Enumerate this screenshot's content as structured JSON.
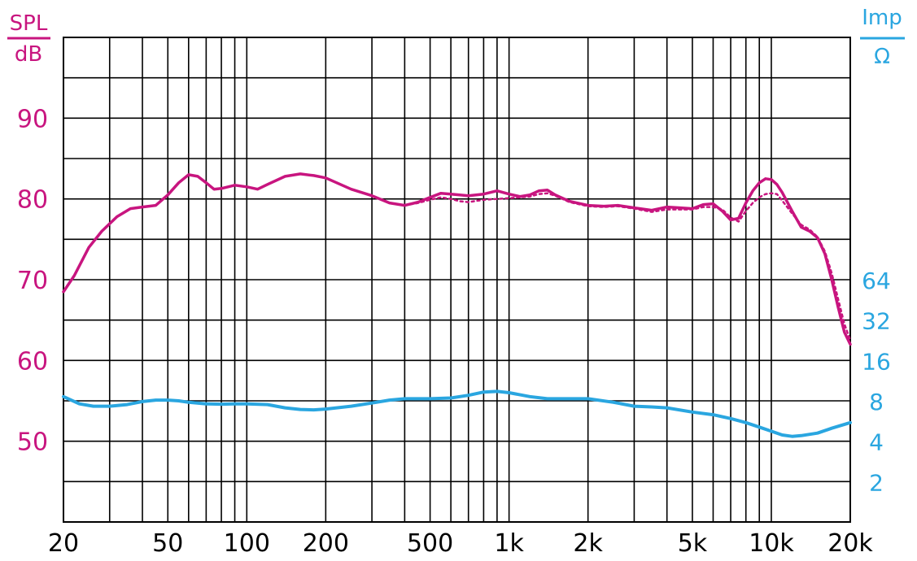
{
  "colors": {
    "spl": "#c8157f",
    "impedance": "#2aa6e0",
    "grid": "#000000",
    "background": "#ffffff"
  },
  "chart_data": {
    "type": "line",
    "title": "",
    "left_axis": {
      "label_top": "SPL",
      "label_bottom": "dB",
      "ylim": [
        40,
        100
      ],
      "ticks": [
        {
          "value": 90,
          "label": "90"
        },
        {
          "value": 80,
          "label": "80"
        },
        {
          "value": 70,
          "label": "70"
        },
        {
          "value": 60,
          "label": "60"
        },
        {
          "value": 50,
          "label": "50"
        }
      ]
    },
    "right_axis": {
      "label_top": "Imp",
      "label_bottom": "Ω",
      "scale": "log2",
      "ticks": [
        {
          "value": 64,
          "label": "64"
        },
        {
          "value": 32,
          "label": "32"
        },
        {
          "value": 16,
          "label": "16"
        },
        {
          "value": 8,
          "label": "8"
        },
        {
          "value": 4,
          "label": "4"
        },
        {
          "value": 2,
          "label": "2"
        }
      ]
    },
    "x_axis": {
      "scale": "log",
      "xlim": [
        20,
        20000
      ],
      "ticks": [
        {
          "value": 20,
          "label": "20"
        },
        {
          "value": 50,
          "label": "50"
        },
        {
          "value": 100,
          "label": "100"
        },
        {
          "value": 200,
          "label": "200"
        },
        {
          "value": 500,
          "label": "500"
        },
        {
          "value": 1000,
          "label": "1k"
        },
        {
          "value": 2000,
          "label": "2k"
        },
        {
          "value": 5000,
          "label": "5k"
        },
        {
          "value": 10000,
          "label": "10k"
        },
        {
          "value": 20000,
          "label": "20k"
        }
      ]
    },
    "grid": true,
    "series": [
      {
        "axis": "left",
        "style": "solid",
        "color": "#c8157f",
        "x": [
          20,
          22,
          25,
          28,
          32,
          36,
          40,
          45,
          50,
          55,
          60,
          65,
          70,
          75,
          80,
          90,
          100,
          110,
          120,
          140,
          160,
          180,
          200,
          250,
          300,
          350,
          400,
          450,
          500,
          550,
          600,
          700,
          800,
          900,
          1000,
          1100,
          1200,
          1300,
          1400,
          1500,
          1700,
          2000,
          2300,
          2600,
          3000,
          3500,
          4000,
          4500,
          5000,
          5500,
          6000,
          6500,
          7000,
          7500,
          8000,
          8500,
          9000,
          9500,
          10000,
          10500,
          11000,
          12000,
          13000,
          14000,
          15000,
          16000,
          17000,
          18000,
          19000,
          20000
        ],
        "y": [
          68.5,
          70.5,
          74,
          76,
          77.8,
          78.8,
          79,
          79.2,
          80.5,
          82,
          83,
          82.8,
          82,
          81.2,
          81.3,
          81.7,
          81.5,
          81.2,
          81.8,
          82.8,
          83.1,
          82.9,
          82.6,
          81.2,
          80.4,
          79.5,
          79.2,
          79.6,
          80.2,
          80.7,
          80.6,
          80.4,
          80.6,
          81,
          80.6,
          80.3,
          80.5,
          81,
          81.1,
          80.5,
          79.7,
          79.2,
          79.1,
          79.2,
          78.9,
          78.6,
          79,
          78.9,
          78.8,
          79.3,
          79.4,
          78.5,
          77.4,
          77.6,
          79.5,
          81,
          82,
          82.5,
          82.4,
          81.8,
          80.8,
          78.5,
          76.5,
          76,
          75.2,
          73.2,
          70,
          66.5,
          63.5,
          62
        ]
      },
      {
        "axis": "left",
        "style": "dotted",
        "color": "#c8157f",
        "x": [
          400,
          450,
          500,
          550,
          600,
          650,
          700,
          800,
          900,
          1000,
          1100,
          1200,
          1300,
          1400,
          1500,
          1700,
          2000,
          2300,
          2600,
          3000,
          3500,
          4000,
          4500,
          5000,
          5500,
          6000,
          6500,
          7000,
          7500,
          8000,
          8500,
          9000,
          9500,
          10000,
          10500,
          11000,
          12000,
          13000,
          14000,
          15000,
          16000,
          17000,
          18000,
          19000,
          20000
        ],
        "y": [
          79.2,
          79.5,
          79.9,
          80.2,
          80,
          79.7,
          79.6,
          79.9,
          80,
          80.1,
          80.2,
          80.3,
          80.6,
          80.7,
          80.4,
          79.6,
          79.1,
          79,
          79.1,
          78.8,
          78.4,
          78.7,
          78.7,
          78.7,
          79,
          79,
          78.7,
          77.7,
          77.2,
          78.5,
          79.5,
          80.2,
          80.6,
          80.7,
          80.6,
          79.8,
          78.2,
          76.8,
          76.2,
          75.3,
          73.5,
          70.8,
          67.5,
          64.5,
          62.5
        ]
      },
      {
        "axis": "right",
        "style": "solid",
        "color": "#2aa6e0",
        "x": [
          20,
          23,
          26,
          30,
          35,
          40,
          45,
          50,
          55,
          60,
          70,
          80,
          90,
          100,
          120,
          140,
          160,
          180,
          200,
          250,
          300,
          350,
          400,
          500,
          600,
          700,
          800,
          900,
          1000,
          1200,
          1400,
          1600,
          1800,
          2000,
          2500,
          3000,
          3500,
          4000,
          5000,
          6000,
          7000,
          8000,
          9000,
          10000,
          11000,
          12000,
          13000,
          15000,
          17000,
          20000
        ],
        "y": [
          8.6,
          7.6,
          7.3,
          7.3,
          7.5,
          7.9,
          8.1,
          8.1,
          8.0,
          7.8,
          7.6,
          7.55,
          7.6,
          7.6,
          7.5,
          7.1,
          6.9,
          6.85,
          6.95,
          7.3,
          7.7,
          8.1,
          8.3,
          8.3,
          8.4,
          8.8,
          9.3,
          9.4,
          9.2,
          8.6,
          8.3,
          8.3,
          8.3,
          8.3,
          7.8,
          7.3,
          7.2,
          7.1,
          6.6,
          6.3,
          5.9,
          5.5,
          5.1,
          4.75,
          4.45,
          4.35,
          4.4,
          4.6,
          5.0,
          5.5
        ]
      }
    ]
  }
}
